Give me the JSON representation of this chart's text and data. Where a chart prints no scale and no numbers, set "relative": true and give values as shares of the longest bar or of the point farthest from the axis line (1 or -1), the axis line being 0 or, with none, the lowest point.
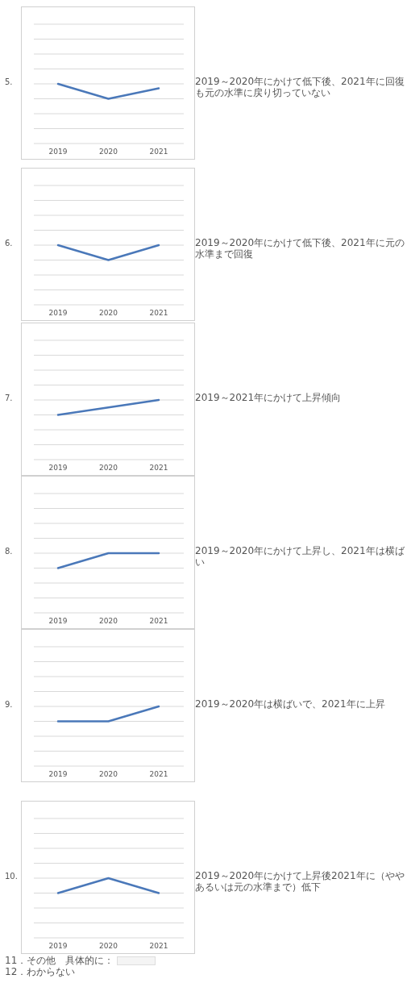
{
  "chart_data": [
    {
      "type": "line",
      "relative": true,
      "title": "5.",
      "categories": [
        "2019",
        "2020",
        "2021"
      ],
      "series": [
        {
          "color": "#4a78b9",
          "values": [
            1,
            0,
            0.7
          ]
        }
      ],
      "annotations": [
        "2019～2020年にかけて低下後、2021年に回復も元の水準に戻り切っていない"
      ]
    },
    {
      "type": "line",
      "relative": true,
      "title": "6.",
      "categories": [
        "2019",
        "2020",
        "2021"
      ],
      "series": [
        {
          "color": "#4a78b9",
          "values": [
            1,
            0,
            1
          ]
        }
      ],
      "annotations": [
        "2019～2020年にかけて低下後、2021年に元の水準まで回復"
      ]
    },
    {
      "type": "line",
      "relative": true,
      "title": "7.",
      "categories": [
        "2019",
        "2020",
        "2021"
      ],
      "series": [
        {
          "color": "#4a78b9",
          "values": [
            0,
            0.5,
            1
          ]
        }
      ],
      "annotations": [
        "2019～2021年にかけて上昇傾向"
      ]
    },
    {
      "type": "line",
      "relative": true,
      "title": "8.",
      "categories": [
        "2019",
        "2020",
        "2021"
      ],
      "series": [
        {
          "color": "#4a78b9",
          "values": [
            0,
            1,
            1
          ]
        }
      ],
      "annotations": [
        "2019～2020年にかけて上昇し、2021年は横ばい"
      ]
    },
    {
      "type": "line",
      "relative": true,
      "title": "9.",
      "categories": [
        "2019",
        "2020",
        "2021"
      ],
      "series": [
        {
          "color": "#4a78b9",
          "values": [
            0,
            0,
            1
          ]
        }
      ],
      "annotations": [
        "2019～2020年は横ばいで、2021年に上昇"
      ]
    },
    {
      "type": "line",
      "relative": true,
      "title": "10.",
      "categories": [
        "2019",
        "2020",
        "2021"
      ],
      "series": [
        {
          "color": "#4a78b9",
          "values": [
            0,
            1,
            0
          ]
        }
      ],
      "annotations": [
        "2019～2020年にかけて上昇後2021年に（ややあるいは元の水準まで）低下"
      ]
    },
    {
      "type": "other",
      "annotations": [
        "11．その他　具体的に：",
        "12．わからない"
      ]
    }
  ]
}
